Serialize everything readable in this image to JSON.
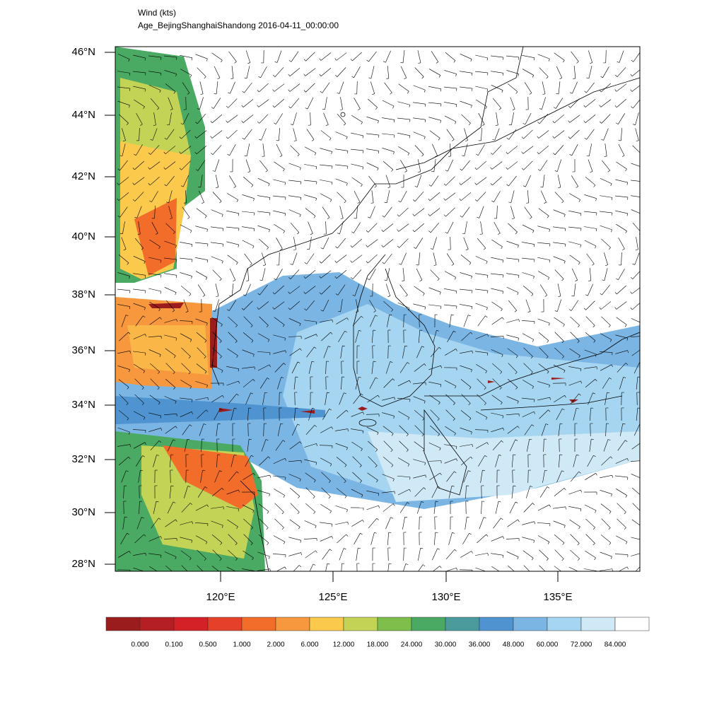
{
  "header": {
    "title": "Wind   (kts)",
    "subtitle": "Age_BejingShanghaiShandong  2016-04-11_00:00:00"
  },
  "map": {
    "lat_labels": [
      "46°N",
      "44°N",
      "42°N",
      "40°N",
      "38°N",
      "36°N",
      "34°N",
      "32°N",
      "30°N",
      "28°N"
    ],
    "lon_labels": [
      "120°E",
      "125°E",
      "130°E",
      "135°E"
    ]
  },
  "colorbar": {
    "colors": [
      "#9b1c1c",
      "#b41f24",
      "#d42027",
      "#e5412a",
      "#f26c2a",
      "#f7983f",
      "#fbc94b",
      "#c3d356",
      "#7dbf4a",
      "#4aa962",
      "#4b9a9c",
      "#4f94d0",
      "#7bb5e3",
      "#a5d5f1",
      "#d0e9f7",
      "#ffffff"
    ],
    "labels": [
      "0.000",
      "0.100",
      "0.500",
      "1.000",
      "2.000",
      "6.000",
      "12.000",
      "18.000",
      "24.000",
      "30.000",
      "36.000",
      "48.000",
      "60.000",
      "72.000",
      "84.000"
    ]
  }
}
